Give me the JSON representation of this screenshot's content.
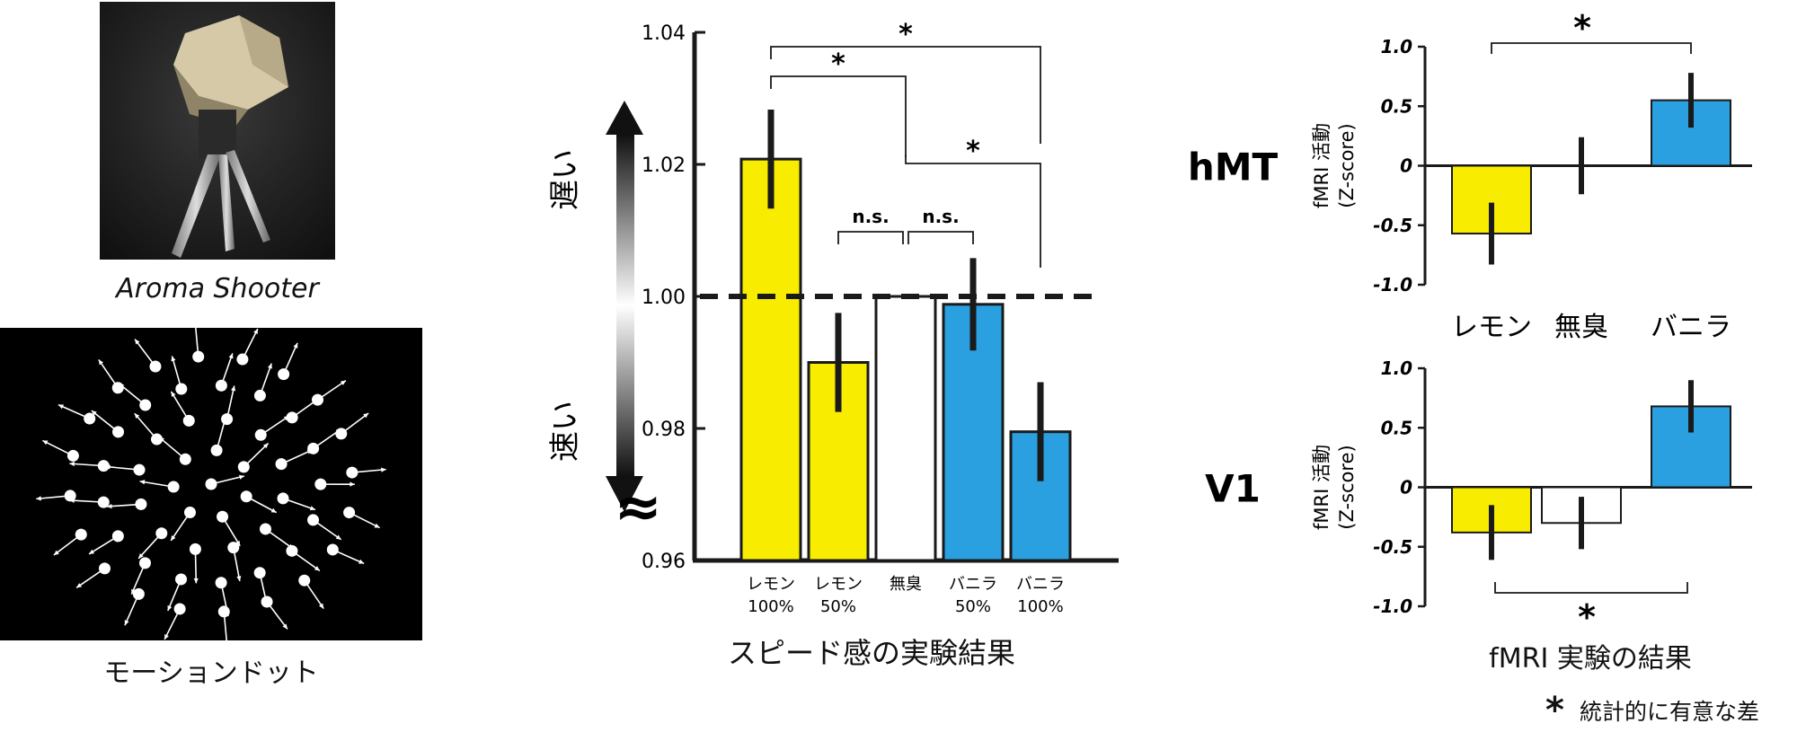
{
  "left": {
    "device_caption": "Aroma Shooter",
    "stimulus_caption": "モーションドット"
  },
  "middle": {
    "caption": "スピード感の実験結果",
    "scale_labels": {
      "slow": "遅い",
      "fast": "速い"
    },
    "break_symbol": "≈",
    "reference_value": 1.0,
    "significance": [
      {
        "label": "*",
        "from": 0,
        "to": 2
      },
      {
        "label": "*",
        "from": 0,
        "to": 4
      },
      {
        "label": "*",
        "from": 2,
        "to": 4
      },
      {
        "label": "n.s.",
        "from": 1,
        "to": 2
      },
      {
        "label": "n.s.",
        "from": 2,
        "to": 3
      }
    ]
  },
  "right": {
    "caption": "fMRI 実験の結果",
    "ylabel_line1": "fMRI 活動",
    "ylabel_line2": "(Z-score)",
    "categories": [
      "レモン",
      "無臭",
      "バニラ"
    ],
    "hmt_label": "hMT",
    "v1_label": "V1",
    "sig_mark": "*",
    "legend": {
      "symbol": "*",
      "text": "統計的に有意な差"
    }
  },
  "colors": {
    "lemon": "#f8ec00",
    "vanilla": "#2aa0e0",
    "neutral": "#ffffff",
    "ink": "#1a1a1a"
  },
  "chart_data": [
    {
      "type": "bar",
      "categories": [
        [
          "レモン",
          "100%"
        ],
        [
          "レモン",
          "50%"
        ],
        [
          "無臭",
          ""
        ],
        [
          "バニラ",
          "50%"
        ],
        [
          "バニラ",
          "100%"
        ]
      ],
      "values": [
        1.0208,
        0.99,
        1.0,
        0.9988,
        0.9795
      ],
      "errors": [
        0.0075,
        0.0075,
        0,
        0.007,
        0.0075
      ],
      "ylim": [
        0.96,
        1.04
      ],
      "yticks": [
        "0.96",
        "0.98",
        "1.00",
        "1.02",
        "1.04"
      ],
      "title": "",
      "xlabel": "",
      "ylabel": ""
    },
    {
      "type": "bar",
      "region": "hMT",
      "categories": [
        "レモン",
        "無臭",
        "バニラ"
      ],
      "values": [
        -0.57,
        0.0,
        0.55
      ],
      "errors": [
        0.26,
        0.24,
        0.23
      ],
      "ylim": [
        -1.0,
        1.0
      ],
      "yticks": [
        "1.0",
        "0.5",
        "0",
        "-0.5",
        "-1.0"
      ]
    },
    {
      "type": "bar",
      "region": "V1",
      "categories": [
        "レモン",
        "無臭",
        "バニラ"
      ],
      "values": [
        -0.38,
        -0.3,
        0.68
      ],
      "errors": [
        0.23,
        0.22,
        0.22
      ],
      "ylim": [
        -1.0,
        1.0
      ],
      "yticks": [
        "1.0",
        "0.5",
        "0",
        "-0.5",
        "-1.0"
      ]
    }
  ]
}
